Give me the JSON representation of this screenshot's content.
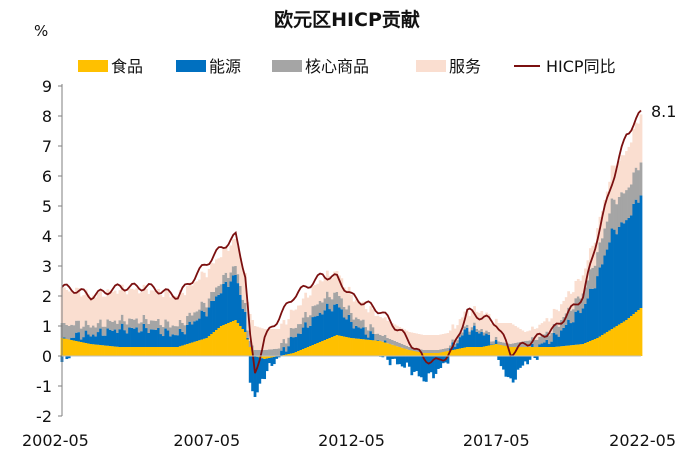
{
  "chart_data": {
    "type": "bar",
    "title": "欧元区HICP贡献",
    "ylabel": "%",
    "ylim": [
      -2,
      9
    ],
    "yticks": [
      9,
      8,
      7,
      6,
      5,
      4,
      3,
      2,
      1,
      0,
      -1,
      -2
    ],
    "xticks": [
      "2002-05",
      "2007-05",
      "2012-05",
      "2017-05",
      "2022-05"
    ],
    "x_start": "2002-05",
    "x_end": "2022-05",
    "legend_position": "top",
    "end_label": "8.1",
    "anchor_months": [
      0,
      6,
      12,
      24,
      36,
      48,
      60,
      66,
      72,
      76,
      78,
      80,
      84,
      96,
      108,
      114,
      120,
      132,
      144,
      150,
      156,
      162,
      168,
      174,
      180,
      186,
      192,
      204,
      216,
      222,
      228,
      234,
      240
    ],
    "series": [
      {
        "name": "食品",
        "color": "#FFC000",
        "values": [
          0.6,
          0.5,
          0.4,
          0.3,
          0.3,
          0.3,
          0.6,
          1.0,
          1.2,
          0.8,
          0.3,
          0.0,
          -0.1,
          0.1,
          0.5,
          0.7,
          0.6,
          0.5,
          0.2,
          0.1,
          0.1,
          0.2,
          0.3,
          0.3,
          0.4,
          0.3,
          0.3,
          0.3,
          0.4,
          0.6,
          0.9,
          1.2,
          1.6
        ]
      },
      {
        "name": "能源",
        "color": "#0070C0",
        "values": [
          -0.2,
          0.2,
          0.3,
          0.6,
          0.6,
          0.4,
          0.9,
          1.2,
          1.5,
          0.6,
          -0.8,
          -1.4,
          -0.5,
          0.5,
          1.0,
          1.0,
          0.5,
          0.0,
          -0.4,
          -0.8,
          -0.5,
          0.1,
          0.6,
          0.5,
          0.0,
          -0.9,
          -0.2,
          0.3,
          1.2,
          2.0,
          3.2,
          3.3,
          3.8
        ]
      },
      {
        "name": "核心商品",
        "color": "#A5A5A5",
        "values": [
          0.5,
          0.4,
          0.3,
          0.3,
          0.3,
          0.3,
          0.3,
          0.3,
          0.3,
          0.3,
          0.2,
          0.2,
          0.2,
          0.3,
          0.4,
          0.4,
          0.3,
          0.2,
          0.1,
          0.1,
          0.1,
          0.1,
          0.1,
          0.1,
          0.1,
          0.1,
          0.2,
          0.3,
          0.5,
          0.8,
          1.0,
          1.0,
          1.1
        ]
      },
      {
        "name": "服务",
        "color": "#FADED0",
        "values": [
          1.2,
          1.1,
          1.0,
          1.0,
          1.0,
          1.0,
          1.0,
          0.9,
          0.9,
          1.0,
          0.9,
          0.8,
          0.7,
          0.6,
          0.7,
          0.7,
          0.6,
          0.6,
          0.5,
          0.5,
          0.5,
          0.5,
          0.5,
          0.6,
          0.6,
          0.7,
          0.3,
          0.5,
          0.6,
          0.8,
          1.1,
          1.3,
          1.6
        ]
      },
      {
        "name": "HICP同比",
        "type": "line",
        "color": "#7B1010",
        "values": [
          2.3,
          2.2,
          2.0,
          2.3,
          2.3,
          2.0,
          3.1,
          3.6,
          4.0,
          2.7,
          0.6,
          -0.6,
          0.6,
          2.0,
          2.7,
          2.6,
          2.0,
          1.5,
          0.5,
          -0.1,
          -0.2,
          0.2,
          1.5,
          1.3,
          1.1,
          0.1,
          0.4,
          0.9,
          2.0,
          4.0,
          5.8,
          7.4,
          8.1
        ]
      }
    ]
  }
}
